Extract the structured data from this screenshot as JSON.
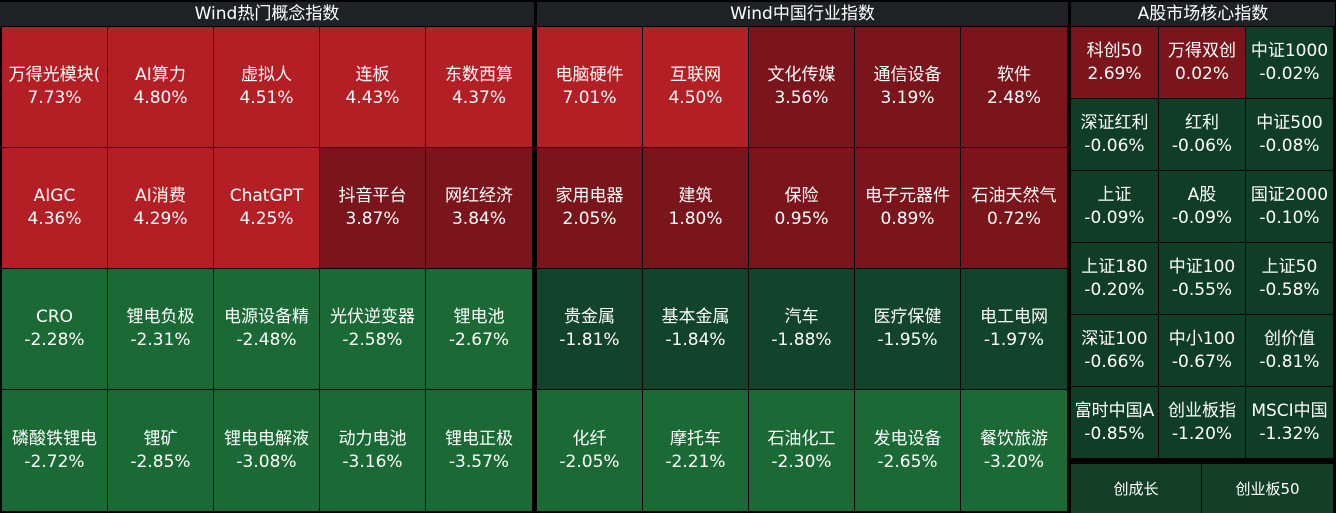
{
  "panels": [
    {
      "title": "Wind热门概念指数",
      "rows": [
        [
          {
            "name": "万得光模块(",
            "pct": "7.73%",
            "tone": "r1"
          },
          {
            "name": "AI算力",
            "pct": "4.80%",
            "tone": "r1"
          },
          {
            "name": "虚拟人",
            "pct": "4.51%",
            "tone": "r1"
          },
          {
            "name": "连板",
            "pct": "4.43%",
            "tone": "r1"
          },
          {
            "name": "东数西算",
            "pct": "4.37%",
            "tone": "r1"
          }
        ],
        [
          {
            "name": "AIGC",
            "pct": "4.36%",
            "tone": "r1"
          },
          {
            "name": "AI消费",
            "pct": "4.29%",
            "tone": "r1"
          },
          {
            "name": "ChatGPT",
            "pct": "4.25%",
            "tone": "r1"
          },
          {
            "name": "抖音平台",
            "pct": "3.87%",
            "tone": "r2"
          },
          {
            "name": "网红经济",
            "pct": "3.84%",
            "tone": "r2"
          }
        ],
        [
          {
            "name": "CRO",
            "pct": "-2.28%",
            "tone": "g1"
          },
          {
            "name": "锂电负极",
            "pct": "-2.31%",
            "tone": "g1"
          },
          {
            "name": "电源设备精",
            "pct": "-2.48%",
            "tone": "g1"
          },
          {
            "name": "光伏逆变器",
            "pct": "-2.58%",
            "tone": "g1"
          },
          {
            "name": "锂电池",
            "pct": "-2.67%",
            "tone": "g1"
          }
        ],
        [
          {
            "name": "磷酸铁锂电",
            "pct": "-2.72%",
            "tone": "g1"
          },
          {
            "name": "锂矿",
            "pct": "-2.85%",
            "tone": "g1"
          },
          {
            "name": "锂电电解液",
            "pct": "-3.08%",
            "tone": "g1"
          },
          {
            "name": "动力电池",
            "pct": "-3.16%",
            "tone": "g1"
          },
          {
            "name": "锂电正极",
            "pct": "-3.57%",
            "tone": "g1"
          }
        ]
      ]
    },
    {
      "title": "Wind中国行业指数",
      "rows": [
        [
          {
            "name": "电脑硬件",
            "pct": "7.01%",
            "tone": "r1"
          },
          {
            "name": "互联网",
            "pct": "4.50%",
            "tone": "r1"
          },
          {
            "name": "文化传媒",
            "pct": "3.56%",
            "tone": "r2"
          },
          {
            "name": "通信设备",
            "pct": "3.19%",
            "tone": "r2"
          },
          {
            "name": "软件",
            "pct": "2.48%",
            "tone": "r2"
          }
        ],
        [
          {
            "name": "家用电器",
            "pct": "2.05%",
            "tone": "r2"
          },
          {
            "name": "建筑",
            "pct": "1.80%",
            "tone": "r2"
          },
          {
            "name": "保险",
            "pct": "0.95%",
            "tone": "r2"
          },
          {
            "name": "电子元器件",
            "pct": "0.89%",
            "tone": "r2"
          },
          {
            "name": "石油天然气",
            "pct": "0.72%",
            "tone": "r2"
          }
        ],
        [
          {
            "name": "贵金属",
            "pct": "-1.81%",
            "tone": "g2"
          },
          {
            "name": "基本金属",
            "pct": "-1.84%",
            "tone": "g2"
          },
          {
            "name": "汽车",
            "pct": "-1.88%",
            "tone": "g2"
          },
          {
            "name": "医疗保健",
            "pct": "-1.95%",
            "tone": "g2"
          },
          {
            "name": "电工电网",
            "pct": "-1.97%",
            "tone": "g2"
          }
        ],
        [
          {
            "name": "化纤",
            "pct": "-2.05%",
            "tone": "g1"
          },
          {
            "name": "摩托车",
            "pct": "-2.21%",
            "tone": "g1"
          },
          {
            "name": "石油化工",
            "pct": "-2.30%",
            "tone": "g1"
          },
          {
            "name": "发电设备",
            "pct": "-2.65%",
            "tone": "g1"
          },
          {
            "name": "餐饮旅游",
            "pct": "-3.20%",
            "tone": "g1"
          }
        ]
      ]
    },
    {
      "title": "A股市场核心指数",
      "rows": [
        [
          {
            "name": "科创50",
            "pct": "2.69%",
            "tone": "r2"
          },
          {
            "name": "万得双创",
            "pct": "0.02%",
            "tone": "r2"
          },
          {
            "name": "中证1000",
            "pct": "-0.02%",
            "tone": "g3"
          }
        ],
        [
          {
            "name": "深证红利",
            "pct": "-0.06%",
            "tone": "g3"
          },
          {
            "name": "红利",
            "pct": "-0.06%",
            "tone": "g3"
          },
          {
            "name": "中证500",
            "pct": "-0.08%",
            "tone": "g3"
          }
        ],
        [
          {
            "name": "上证",
            "pct": "-0.09%",
            "tone": "g3"
          },
          {
            "name": "A股",
            "pct": "-0.09%",
            "tone": "g3"
          },
          {
            "name": "国证2000",
            "pct": "-0.10%",
            "tone": "g3"
          }
        ],
        [
          {
            "name": "上证180",
            "pct": "-0.20%",
            "tone": "g3"
          },
          {
            "name": "中证100",
            "pct": "-0.55%",
            "tone": "g3"
          },
          {
            "name": "上证50",
            "pct": "-0.58%",
            "tone": "g3"
          }
        ],
        [
          {
            "name": "深证100",
            "pct": "-0.66%",
            "tone": "g3"
          },
          {
            "name": "中小100",
            "pct": "-0.67%",
            "tone": "g3"
          },
          {
            "name": "创价值",
            "pct": "-0.81%",
            "tone": "g3"
          }
        ],
        [
          {
            "name": "富时中国A",
            "pct": "-0.85%",
            "tone": "g3"
          },
          {
            "name": "创业板指",
            "pct": "-1.20%",
            "tone": "g3"
          },
          {
            "name": "MSCI中国",
            "pct": "-1.32%",
            "tone": "g3"
          }
        ]
      ],
      "buttons": [
        "创成长",
        "创业板50"
      ]
    }
  ],
  "colors": {
    "red_strong": "#b41f25",
    "red_weak": "#7a151b",
    "green_strong": "#1b6a36",
    "green_weak": "#11442a",
    "green_dark": "#0f3d25"
  }
}
